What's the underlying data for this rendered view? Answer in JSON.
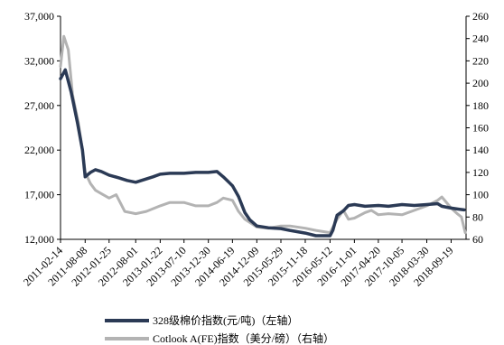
{
  "chart_data": {
    "type": "line",
    "x_tick_labels": [
      "2011-02-14",
      "2011-08-08",
      "2012-01-25",
      "2012-08-01",
      "2013-01-22",
      "2013-07-10",
      "2013-12-30",
      "2014-06-19",
      "2014-12-09",
      "2015-05-29",
      "2015-11-18",
      "2016-05-12",
      "2016-11-01",
      "2017-04-20",
      "2017-10-05",
      "2018-03-30",
      "2018-09-19"
    ],
    "y_left": {
      "ylim": [
        12000,
        37000
      ],
      "ticks": [
        "12,000",
        "17,000",
        "22,000",
        "27,000",
        "32,000",
        "37,000"
      ]
    },
    "y_right": {
      "ylim": [
        60,
        260
      ],
      "ticks": [
        "60",
        "80",
        "100",
        "120",
        "140",
        "160",
        "180",
        "200",
        "220",
        "240",
        "260"
      ]
    },
    "series": [
      {
        "name": "328级棉价指数(元/吨)（左轴）",
        "axis": "left",
        "color": "#2b3a55",
        "x": [
          "2011-02-14",
          "2011-03-20",
          "2011-05-01",
          "2011-06-15",
          "2011-07-20",
          "2011-08-08",
          "2011-09-15",
          "2011-10-20",
          "2011-12-01",
          "2012-01-25",
          "2012-04-01",
          "2012-06-01",
          "2012-08-01",
          "2012-10-01",
          "2012-12-01",
          "2013-01-22",
          "2013-04-01",
          "2013-07-10",
          "2013-10-01",
          "2013-12-30",
          "2014-03-01",
          "2014-04-15",
          "2014-06-19",
          "2014-08-01",
          "2014-09-15",
          "2014-10-20",
          "2014-12-09",
          "2015-03-01",
          "2015-05-29",
          "2015-08-01",
          "2015-11-18",
          "2016-02-01",
          "2016-05-12",
          "2016-06-01",
          "2016-07-01",
          "2016-08-15",
          "2016-09-20",
          "2016-11-01",
          "2017-01-15",
          "2017-04-20",
          "2017-07-01",
          "2017-10-05",
          "2018-01-01",
          "2018-03-30",
          "2018-06-15",
          "2018-07-15",
          "2018-09-19",
          "2018-11-01",
          "2018-12-20"
        ],
        "values": [
          30000,
          31000,
          28500,
          25000,
          22000,
          19000,
          19500,
          19800,
          19600,
          19200,
          18900,
          18600,
          18400,
          18700,
          19000,
          19300,
          19400,
          19400,
          19500,
          19500,
          19600,
          19000,
          18000,
          16800,
          15000,
          14200,
          13500,
          13300,
          13200,
          13000,
          12700,
          12400,
          12400,
          13000,
          14700,
          15200,
          15800,
          15900,
          15700,
          15800,
          15700,
          15900,
          15800,
          15900,
          16000,
          15700,
          15500,
          15400,
          15300
        ]
      },
      {
        "name": "Cotlook A(FE)指数（美分/磅）（右轴）",
        "axis": "right",
        "color": "#b3b3b3",
        "x": [
          "2011-02-14",
          "2011-03-10",
          "2011-04-10",
          "2011-05-10",
          "2011-06-20",
          "2011-07-20",
          "2011-08-08",
          "2011-09-15",
          "2011-10-20",
          "2011-12-01",
          "2012-01-25",
          "2012-03-15",
          "2012-05-15",
          "2012-08-01",
          "2012-10-15",
          "2013-01-22",
          "2013-04-01",
          "2013-07-10",
          "2013-10-01",
          "2013-12-30",
          "2014-03-01",
          "2014-04-15",
          "2014-06-19",
          "2014-08-01",
          "2014-09-15",
          "2014-12-09",
          "2015-03-01",
          "2015-05-29",
          "2015-08-01",
          "2015-11-18",
          "2016-02-01",
          "2016-05-12",
          "2016-07-01",
          "2016-08-15",
          "2016-09-20",
          "2016-11-01",
          "2017-01-15",
          "2017-03-01",
          "2017-04-20",
          "2017-07-01",
          "2017-10-05",
          "2018-01-01",
          "2018-03-30",
          "2018-05-01",
          "2018-06-15",
          "2018-07-15",
          "2018-09-19",
          "2018-11-01",
          "2018-12-01",
          "2018-12-28"
        ],
        "values": [
          215,
          242,
          230,
          190,
          165,
          140,
          120,
          110,
          104,
          101,
          97,
          100,
          85,
          83,
          85,
          90,
          93,
          93,
          90,
          90,
          93,
          97,
          95,
          85,
          78,
          71,
          70,
          72,
          72,
          70,
          68,
          66,
          78,
          86,
          78,
          79,
          84,
          86,
          82,
          83,
          82,
          86,
          90,
          92,
          95,
          98,
          88,
          83,
          80,
          66
        ]
      }
    ],
    "legend": [
      "328级棉价指数(元/吨)（左轴）",
      "Cotlook A(FE)指数（美分/磅）（右轴）"
    ],
    "legend_position": "bottom",
    "grid": false
  }
}
